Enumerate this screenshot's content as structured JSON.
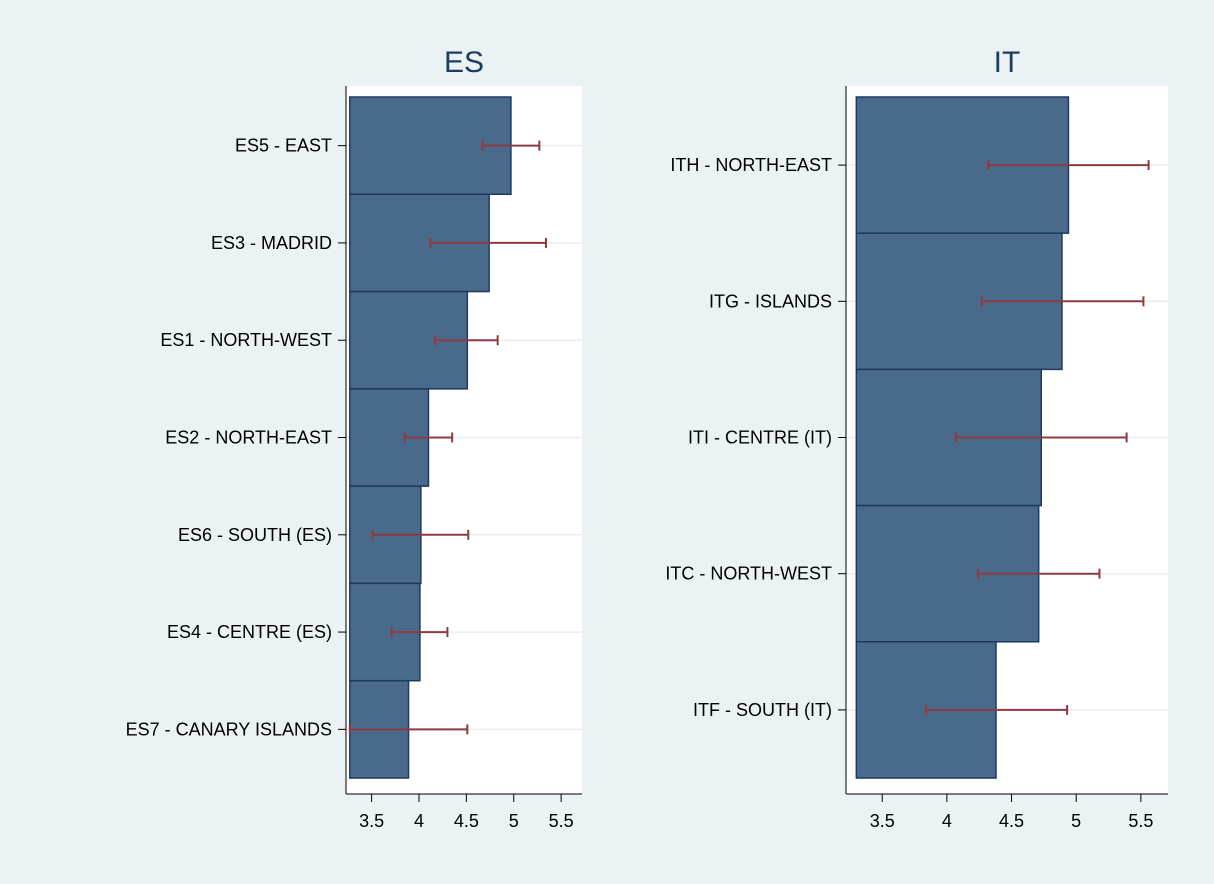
{
  "chart_data": [
    {
      "type": "bar",
      "orientation": "horizontal",
      "title": "ES",
      "categories": [
        "ES5 - EAST",
        "ES3 - MADRID",
        "ES1 - NORTH-WEST",
        "ES2 - NORTH-EAST",
        "ES6 - SOUTH (ES)",
        "ES4 - CENTRE (ES)",
        "ES7 - CANARY ISLANDS"
      ],
      "values": [
        4.97,
        4.74,
        4.51,
        4.1,
        4.02,
        4.01,
        3.89
      ],
      "error_low": [
        4.67,
        4.12,
        4.17,
        3.85,
        3.51,
        3.71,
        3.27
      ],
      "error_high": [
        5.27,
        5.34,
        4.83,
        4.35,
        4.52,
        4.3,
        4.51
      ],
      "x_ticks": [
        "3.5",
        "4",
        "4.5",
        "5",
        "5.5"
      ],
      "xlim": [
        3.23,
        5.72
      ],
      "bar_base": 3.27,
      "grid": true,
      "colors": {
        "bar": "#4a6a8c",
        "bar_edge": "#1d3a5f",
        "error": "#8f3a41",
        "plot_bg": "#ffffff",
        "grid": "#e8eef0",
        "title": "#1f3c63"
      }
    },
    {
      "type": "bar",
      "orientation": "horizontal",
      "title": "IT",
      "categories": [
        "ITH - NORTH-EAST",
        "ITG - ISLANDS",
        "ITI - CENTRE (IT)",
        "ITC - NORTH-WEST",
        "ITF - SOUTH (IT)"
      ],
      "values": [
        4.94,
        4.89,
        4.73,
        4.71,
        4.38
      ],
      "error_low": [
        4.32,
        4.27,
        4.07,
        4.24,
        3.84
      ],
      "error_high": [
        5.56,
        5.52,
        5.39,
        5.18,
        4.93
      ],
      "x_ticks": [
        "3.5",
        "4",
        "4.5",
        "5",
        "5.5"
      ],
      "xlim": [
        3.22,
        5.71
      ],
      "bar_base": 3.3,
      "grid": true,
      "colors": {
        "bar": "#4a6a8c",
        "bar_edge": "#1d3a5f",
        "error": "#8f3a41",
        "plot_bg": "#ffffff",
        "grid": "#e8eef0",
        "title": "#1f3c63"
      }
    }
  ]
}
